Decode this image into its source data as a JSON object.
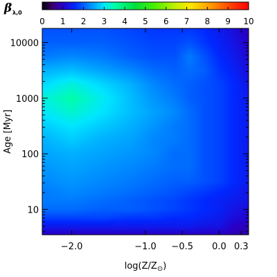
{
  "chart_data": {
    "type": "heatmap",
    "colorbar": {
      "symbol": "β",
      "subscript": "λ,0",
      "range": [
        0,
        10
      ],
      "ticks": [
        "0",
        "1",
        "2",
        "3",
        "4",
        "5",
        "6",
        "7",
        "8",
        "9",
        "10"
      ]
    },
    "x_axis": {
      "label_prefix": "log(Z/Z",
      "label_sun": "⊙",
      "label_suffix": ")",
      "range": [
        -2.4,
        0.4
      ],
      "ticks": [
        {
          "value": -2.0,
          "label": "−2.0"
        },
        {
          "value": -1.0,
          "label": "−1.0"
        },
        {
          "value": -0.5,
          "label": "−0.5"
        },
        {
          "value": 0.0,
          "label": "0.0"
        },
        {
          "value": 0.3,
          "label": "0.3"
        }
      ]
    },
    "y_axis": {
      "label_word": "Age",
      "label_unit": "[Myr]",
      "scale": "log",
      "range": [
        3.5,
        18000
      ],
      "ticks": [
        {
          "value": 10,
          "label": "10"
        },
        {
          "value": 100,
          "label": "100"
        },
        {
          "value": 1000,
          "label": "1000"
        },
        {
          "value": 10000,
          "label": "10000"
        }
      ]
    },
    "colormap_stops": [
      {
        "v": 0,
        "color": "#000000"
      },
      {
        "v": 0.5,
        "color": "#3c0070"
      },
      {
        "v": 1,
        "color": "#2800c8"
      },
      {
        "v": 1.6,
        "color": "#0028ff"
      },
      {
        "v": 2.4,
        "color": "#0096ff"
      },
      {
        "v": 3.0,
        "color": "#00e6ff"
      },
      {
        "v": 3.5,
        "color": "#00ffaa"
      },
      {
        "v": 4.5,
        "color": "#00e03c"
      },
      {
        "v": 5.5,
        "color": "#50f000"
      },
      {
        "v": 6.5,
        "color": "#c8f000"
      },
      {
        "v": 7.2,
        "color": "#ffe600"
      },
      {
        "v": 8.2,
        "color": "#ff9600"
      },
      {
        "v": 9.2,
        "color": "#ff3c00"
      },
      {
        "v": 10,
        "color": "#ff0000"
      }
    ],
    "z_grid": {
      "log_age": [
        0.55,
        0.7,
        0.85,
        1.0,
        1.15,
        1.3,
        1.5,
        1.75,
        2.0,
        2.25,
        2.5,
        2.75,
        3.0,
        3.25,
        3.5,
        3.75,
        4.0,
        4.25
      ],
      "logZ": [
        -2.4,
        -2.0,
        -1.6,
        -1.2,
        -0.9,
        -0.6,
        -0.4,
        -0.2,
        0.0,
        0.2,
        0.4
      ],
      "values": [
        [
          1.0,
          1.0,
          1.0,
          1.0,
          1.0,
          1.0,
          1.0,
          1.0,
          1.0,
          0.9,
          0.8
        ],
        [
          1.4,
          1.4,
          1.4,
          1.4,
          1.4,
          1.4,
          1.4,
          1.3,
          1.3,
          1.0,
          0.9
        ],
        [
          1.8,
          1.8,
          1.8,
          1.7,
          1.7,
          1.6,
          1.6,
          1.5,
          1.4,
          1.2,
          1.1
        ],
        [
          2.1,
          2.1,
          2.0,
          2.0,
          1.9,
          1.8,
          1.7,
          1.6,
          1.5,
          1.3,
          1.2
        ],
        [
          2.2,
          2.2,
          2.1,
          2.0,
          1.9,
          1.8,
          1.7,
          1.6,
          1.5,
          1.4,
          1.3
        ],
        [
          2.2,
          2.3,
          2.2,
          2.1,
          2.0,
          1.9,
          1.8,
          1.7,
          1.6,
          1.5,
          1.3
        ],
        [
          2.3,
          2.4,
          2.3,
          2.2,
          2.1,
          2.0,
          2.0,
          1.9,
          1.8,
          1.6,
          1.4
        ],
        [
          2.4,
          2.5,
          2.4,
          2.3,
          2.2,
          2.1,
          2.1,
          1.9,
          1.8,
          1.6,
          1.4
        ],
        [
          2.5,
          2.6,
          2.5,
          2.4,
          2.3,
          2.1,
          2.1,
          1.9,
          1.8,
          1.6,
          1.4
        ],
        [
          2.6,
          2.8,
          2.6,
          2.5,
          2.3,
          2.2,
          2.1,
          1.9,
          1.8,
          1.6,
          1.4
        ],
        [
          2.8,
          3.0,
          2.8,
          2.6,
          2.4,
          2.2,
          2.1,
          1.9,
          1.8,
          1.6,
          1.4
        ],
        [
          3.0,
          3.3,
          3.0,
          2.7,
          2.5,
          2.3,
          2.1,
          1.9,
          1.8,
          1.6,
          1.4
        ],
        [
          3.2,
          3.5,
          3.1,
          2.7,
          2.4,
          2.2,
          2.0,
          1.9,
          1.8,
          1.6,
          1.4
        ],
        [
          2.9,
          3.2,
          2.9,
          2.6,
          2.3,
          2.1,
          2.0,
          1.9,
          1.8,
          1.6,
          1.3
        ],
        [
          2.6,
          2.7,
          2.5,
          2.3,
          2.1,
          2.0,
          2.1,
          2.0,
          1.7,
          1.5,
          1.2
        ],
        [
          2.2,
          2.3,
          2.2,
          2.0,
          1.9,
          1.9,
          2.2,
          1.9,
          1.6,
          1.4,
          1.1
        ],
        [
          2.0,
          2.0,
          2.0,
          1.9,
          1.8,
          1.8,
          1.9,
          1.7,
          1.5,
          1.3,
          1.0
        ],
        [
          1.9,
          1.9,
          1.9,
          1.8,
          1.7,
          1.7,
          1.7,
          1.6,
          1.4,
          1.2,
          0.9
        ]
      ]
    }
  }
}
